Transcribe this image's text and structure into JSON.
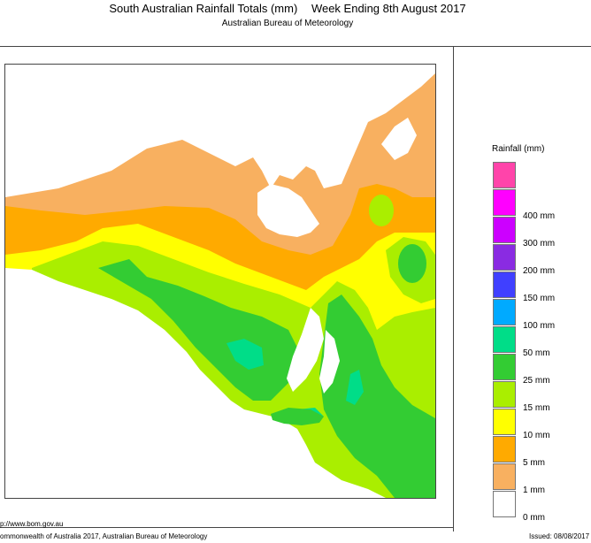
{
  "header": {
    "title_left": "South Australian Rainfall Totals (mm)",
    "title_right": "Week Ending 8th August 2017",
    "subtitle": "Australian Bureau of Meteorology"
  },
  "legend": {
    "title": "Rainfall (mm)",
    "items": [
      {
        "label": "",
        "color": "#ff44aa"
      },
      {
        "label": "400 mm",
        "color": "#ff00ff"
      },
      {
        "label": "300 mm",
        "color": "#cc00ff"
      },
      {
        "label": "200 mm",
        "color": "#8a2be2"
      },
      {
        "label": "150 mm",
        "color": "#4040ff"
      },
      {
        "label": "100 mm",
        "color": "#00aaff"
      },
      {
        "label": "50 mm",
        "color": "#00dd88"
      },
      {
        "label": "25 mm",
        "color": "#33cc33"
      },
      {
        "label": "15 mm",
        "color": "#aaee00"
      },
      {
        "label": "10 mm",
        "color": "#ffff00"
      },
      {
        "label": "5 mm",
        "color": "#ffaa00"
      },
      {
        "label": "1 mm",
        "color": "#f8b060"
      },
      {
        "label": "0 mm",
        "color": "#ffffff"
      }
    ]
  },
  "footer": {
    "url": "p://www.bom.gov.au",
    "copyright": "ommonwealth of Australia 2017, Australian Bureau of Meteorology",
    "issued": "Issued: 08/08/2017"
  }
}
